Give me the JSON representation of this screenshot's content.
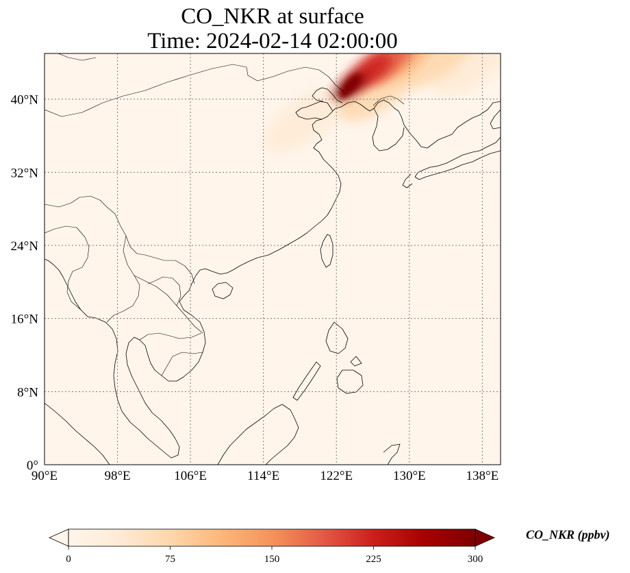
{
  "title": {
    "line1": "CO_NKR at surface",
    "line2": "Time: 2024-02-14 02:00:00"
  },
  "map": {
    "projection": "PlateCarree",
    "lon_range": [
      90,
      140
    ],
    "lat_range": [
      0,
      45
    ],
    "gridlines": true,
    "gridline_style": "dotted",
    "x_ticks": [
      {
        "lon": 90,
        "label": "90°E"
      },
      {
        "lon": 98,
        "label": "98°E"
      },
      {
        "lon": 106,
        "label": "106°E"
      },
      {
        "lon": 114,
        "label": "114°E"
      },
      {
        "lon": 122,
        "label": "122°E"
      },
      {
        "lon": 130,
        "label": "130°E"
      },
      {
        "lon": 138,
        "label": "138°E"
      }
    ],
    "y_ticks": [
      {
        "lat": 0,
        "label": "0°"
      },
      {
        "lat": 8,
        "label": "8°N"
      },
      {
        "lat": 16,
        "label": "16°N"
      },
      {
        "lat": 24,
        "label": "24°N"
      },
      {
        "lat": 32,
        "label": "32°N"
      },
      {
        "lat": 40,
        "label": "40°N"
      }
    ],
    "background_color": "#fff5eb",
    "coastline_color": "#000000",
    "plume": [
      {
        "lon": 123.5,
        "lat": 41.4,
        "value": 300
      },
      {
        "lon": 125.5,
        "lat": 43.0,
        "value": 230
      },
      {
        "lon": 127.5,
        "lat": 44.2,
        "value": 180
      },
      {
        "lon": 129.0,
        "lat": 44.6,
        "value": 120
      },
      {
        "lon": 133.0,
        "lat": 44.5,
        "value": 80
      },
      {
        "lon": 137.0,
        "lat": 43.8,
        "value": 50
      },
      {
        "lon": 118.5,
        "lat": 37.7,
        "value": 45
      },
      {
        "lon": 126.5,
        "lat": 41.0,
        "value": 60
      }
    ]
  },
  "colorbar": {
    "colormap": "OrRd",
    "vmin": 0,
    "vmax": 300,
    "extend": "both",
    "ticks": [
      "0",
      "75",
      "150",
      "225",
      "300"
    ],
    "label": "CO_NKR (ppbv)",
    "colors": [
      "#fff5eb",
      "#fee6ce",
      "#fdd0a2",
      "#fdae6b",
      "#fd8d3c",
      "#f16913",
      "#d94801",
      "#a63603",
      "#7f2704"
    ]
  }
}
